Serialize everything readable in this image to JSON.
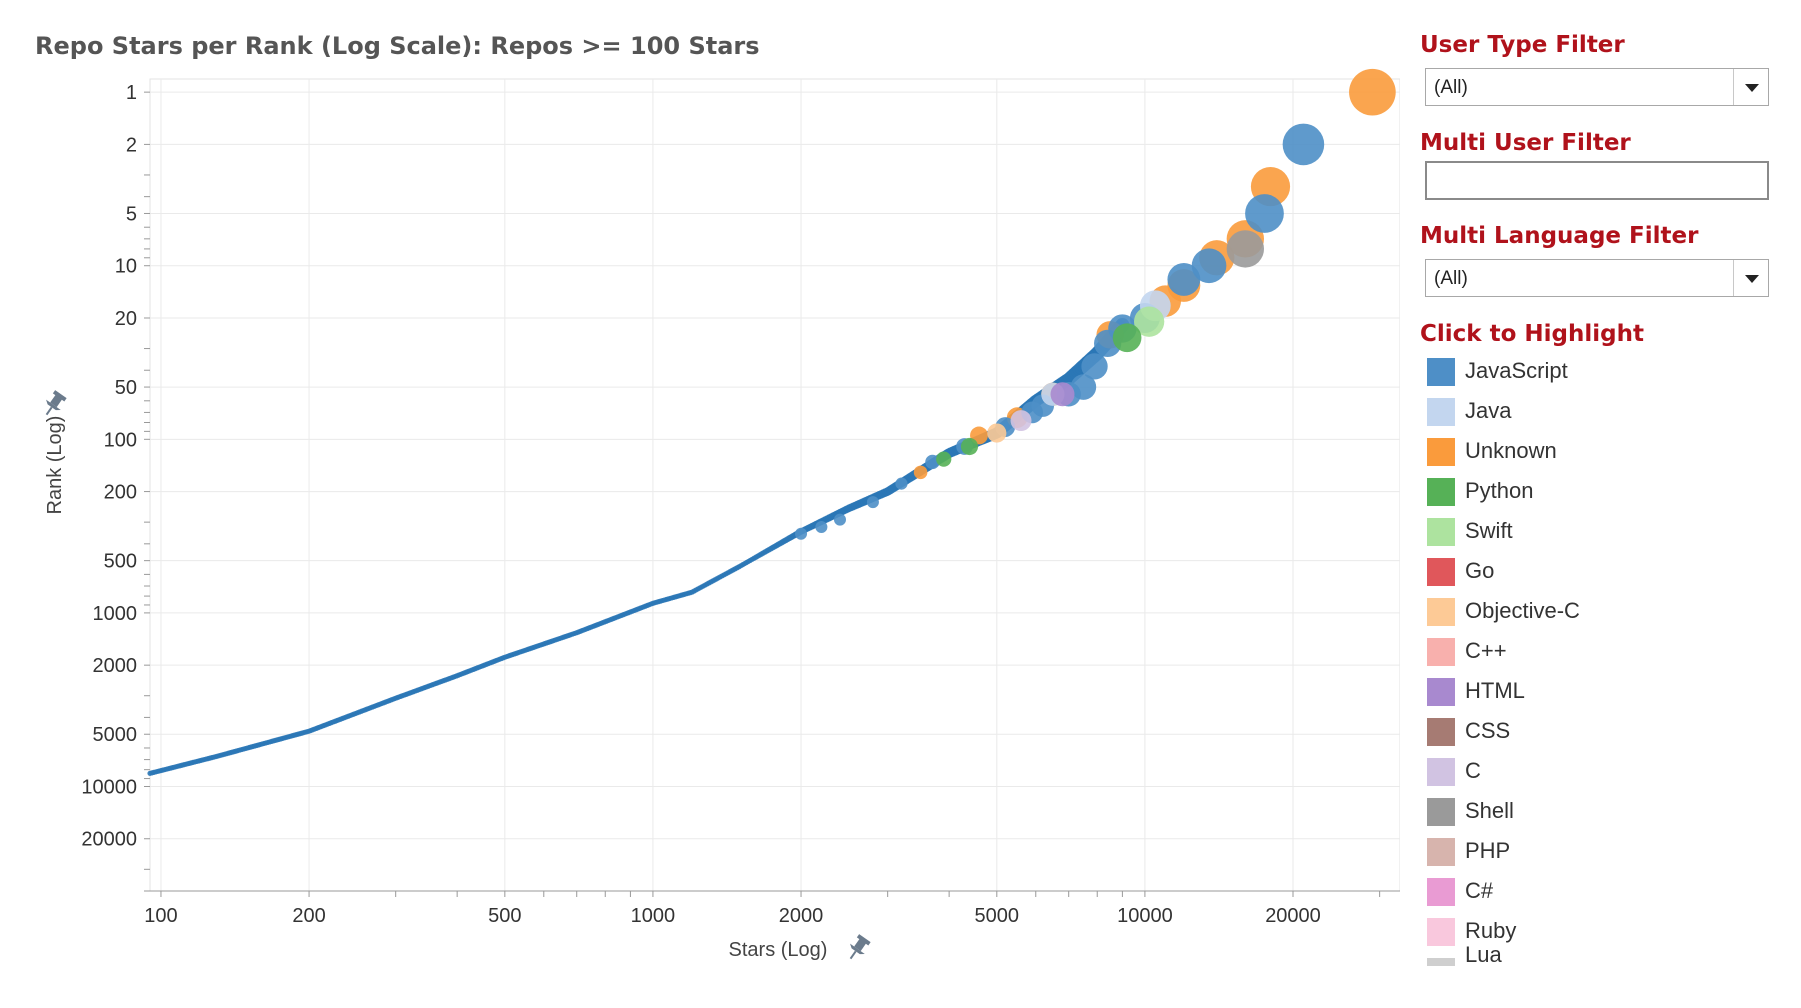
{
  "chart_data": {
    "type": "scatter",
    "title": "Repo Stars per Rank (Log Scale): Repos >= 100 Stars",
    "xlabel": "Stars (Log)",
    "ylabel": "Rank (Log)",
    "x_scale": "log",
    "y_scale": "log",
    "y_inverted": true,
    "xlim": [
      95,
      33000
    ],
    "ylim": [
      0.84,
      40000
    ],
    "x_ticks": [
      100,
      200,
      500,
      1000,
      2000,
      5000,
      10000,
      20000
    ],
    "x_tick_labels": [
      "100",
      "200",
      "500",
      "1000",
      "2000",
      "5000",
      "10000",
      "20000"
    ],
    "y_ticks": [
      1,
      2,
      5,
      10,
      20,
      50,
      100,
      200,
      500,
      1000,
      2000,
      5000,
      10000,
      20000
    ],
    "y_tick_labels": [
      "1",
      "2",
      "5",
      "10",
      "20",
      "50",
      "100",
      "200",
      "500",
      "1000",
      "2000",
      "5000",
      "10000",
      "20000"
    ],
    "curve": [
      [
        95,
        8400
      ],
      [
        130,
        6700
      ],
      [
        200,
        4800
      ],
      [
        300,
        3100
      ],
      [
        400,
        2300
      ],
      [
        500,
        1800
      ],
      [
        700,
        1300
      ],
      [
        1000,
        880
      ],
      [
        1200,
        760
      ],
      [
        1500,
        540
      ],
      [
        2000,
        340
      ],
      [
        2500,
        250
      ],
      [
        3000,
        200
      ],
      [
        4000,
        120
      ],
      [
        5000,
        92
      ],
      [
        6000,
        60
      ],
      [
        7000,
        45
      ],
      [
        8000,
        32
      ],
      [
        9000,
        22
      ]
    ],
    "series": [
      {
        "name": "Unknown",
        "points": [
          [
            29000,
            1
          ],
          [
            18000,
            3.5
          ],
          [
            16000,
            7
          ],
          [
            14000,
            9
          ],
          [
            12000,
            13
          ],
          [
            11000,
            16
          ],
          [
            8500,
            25
          ],
          [
            6500,
            55
          ],
          [
            5500,
            75
          ],
          [
            4600,
            95
          ],
          [
            3500,
            155
          ]
        ]
      },
      {
        "name": "JavaScript",
        "points": [
          [
            21000,
            2
          ],
          [
            17500,
            5
          ],
          [
            13500,
            10
          ],
          [
            12000,
            12
          ],
          [
            10000,
            20
          ],
          [
            9000,
            23
          ],
          [
            8400,
            28
          ],
          [
            7900,
            38
          ],
          [
            7500,
            50
          ],
          [
            7000,
            55
          ],
          [
            6200,
            64
          ],
          [
            5900,
            70
          ],
          [
            5200,
            85
          ],
          [
            4300,
            110
          ],
          [
            3700,
            135
          ],
          [
            3200,
            180
          ],
          [
            2800,
            230
          ],
          [
            2400,
            290
          ],
          [
            2200,
            320
          ],
          [
            2000,
            350
          ]
        ]
      },
      {
        "name": "Shell",
        "points": [
          [
            16000,
            8
          ]
        ]
      },
      {
        "name": "Java",
        "points": [
          [
            10500,
            17
          ],
          [
            6500,
            55
          ]
        ]
      },
      {
        "name": "Swift",
        "points": [
          [
            10200,
            21
          ]
        ]
      },
      {
        "name": "Python",
        "points": [
          [
            9200,
            26
          ],
          [
            4400,
            110
          ],
          [
            3900,
            130
          ]
        ]
      },
      {
        "name": "HTML",
        "points": [
          [
            6800,
            55
          ]
        ]
      },
      {
        "name": "C",
        "points": [
          [
            5600,
            78
          ]
        ]
      },
      {
        "name": "Objective-C",
        "points": [
          [
            5000,
            92
          ]
        ]
      }
    ],
    "legend": {
      "title": "Click to Highlight",
      "placement": "right",
      "entries": [
        {
          "label": "JavaScript",
          "color": "#4e8fc7"
        },
        {
          "label": "Java",
          "color": "#c3d6ef"
        },
        {
          "label": "Unknown",
          "color": "#fa9b3c"
        },
        {
          "label": "Python",
          "color": "#56b157"
        },
        {
          "label": "Swift",
          "color": "#ade39f"
        },
        {
          "label": "Go",
          "color": "#e0575b"
        },
        {
          "label": "Objective-C",
          "color": "#fdca96"
        },
        {
          "label": "C++",
          "color": "#f8b0ad"
        },
        {
          "label": "HTML",
          "color": "#a889cf"
        },
        {
          "label": "CSS",
          "color": "#a67b73"
        },
        {
          "label": "C",
          "color": "#d1c3e2"
        },
        {
          "label": "Shell",
          "color": "#9a9a9a"
        },
        {
          "label": "PHP",
          "color": "#d7b4ad"
        },
        {
          "label": "C#",
          "color": "#e99bd3"
        },
        {
          "label": "Ruby",
          "color": "#f9c8dd"
        },
        {
          "label": "Lua",
          "color": "#cfcfcf"
        }
      ]
    },
    "grid": true,
    "curve_color": "#2b77b6"
  },
  "filters": {
    "user_type": {
      "label": "User Type Filter",
      "value": "(All)"
    },
    "multi_user": {
      "label": "Multi User Filter",
      "value": ""
    },
    "multi_language": {
      "label": "Multi Language Filter",
      "value": "(All)"
    }
  }
}
